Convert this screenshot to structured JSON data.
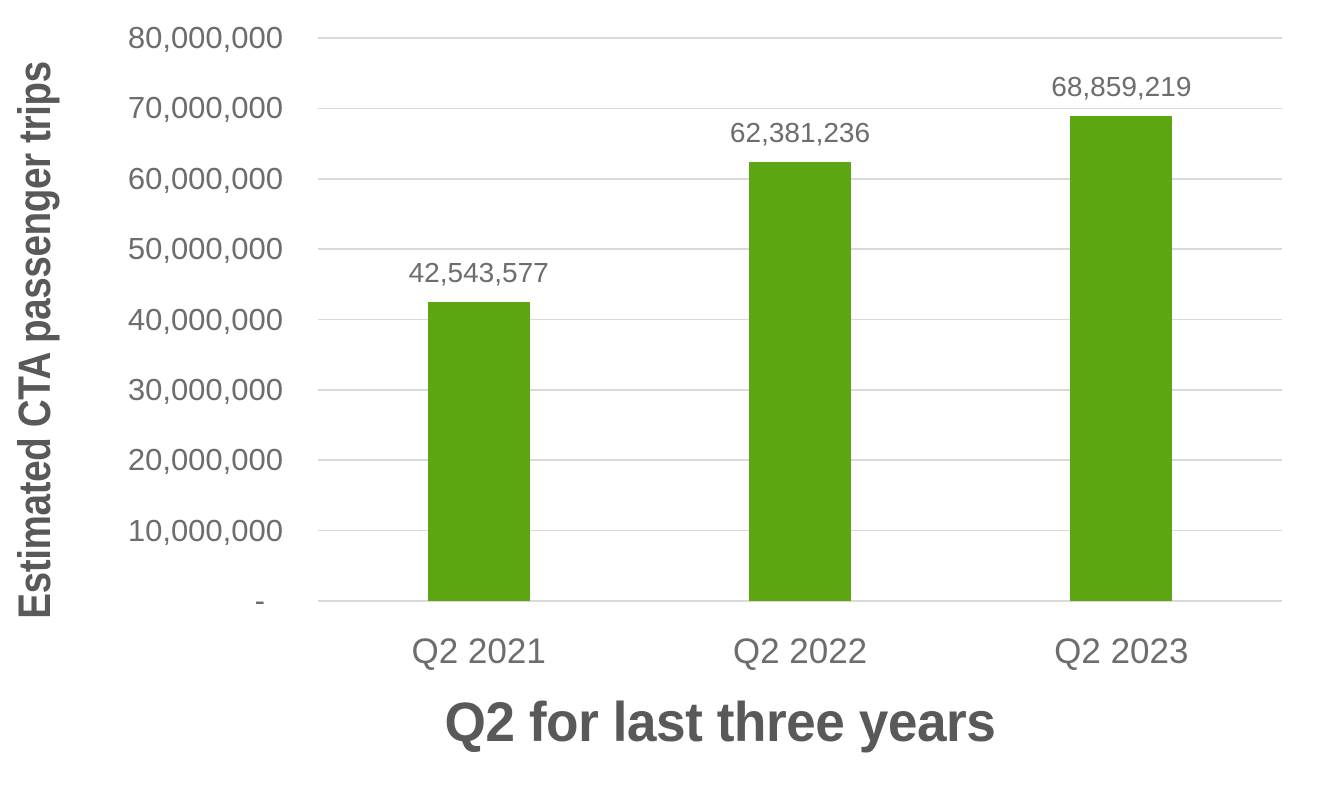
{
  "colors": {
    "bar": "#5ca612",
    "grid": "#d9d9d9",
    "text": "#6d6d6d",
    "title": "#595959",
    "background": "#ffffff"
  },
  "chart_data": {
    "type": "bar",
    "title": "",
    "xlabel": "Q2 for last three years",
    "ylabel": "Estimated CTA passenger trips",
    "categories": [
      "Q2 2021",
      "Q2 2022",
      "Q2 2023"
    ],
    "values": [
      42543577,
      62381236,
      68859219
    ],
    "value_labels": [
      "42,543,577",
      "62,381,236",
      "68,859,219"
    ],
    "ylim": [
      0,
      80000000
    ],
    "ytick_interval": 10000000,
    "yticks": [
      0,
      10000000,
      20000000,
      30000000,
      40000000,
      50000000,
      60000000,
      70000000,
      80000000
    ],
    "ytick_labels": [
      "-",
      "10,000,000",
      "20,000,000",
      "30,000,000",
      "40,000,000",
      "50,000,000",
      "60,000,000",
      "70,000,000",
      "80,000,000"
    ],
    "grid": "horizontal",
    "legend_position": "none",
    "bar_color": "#5ca612"
  }
}
